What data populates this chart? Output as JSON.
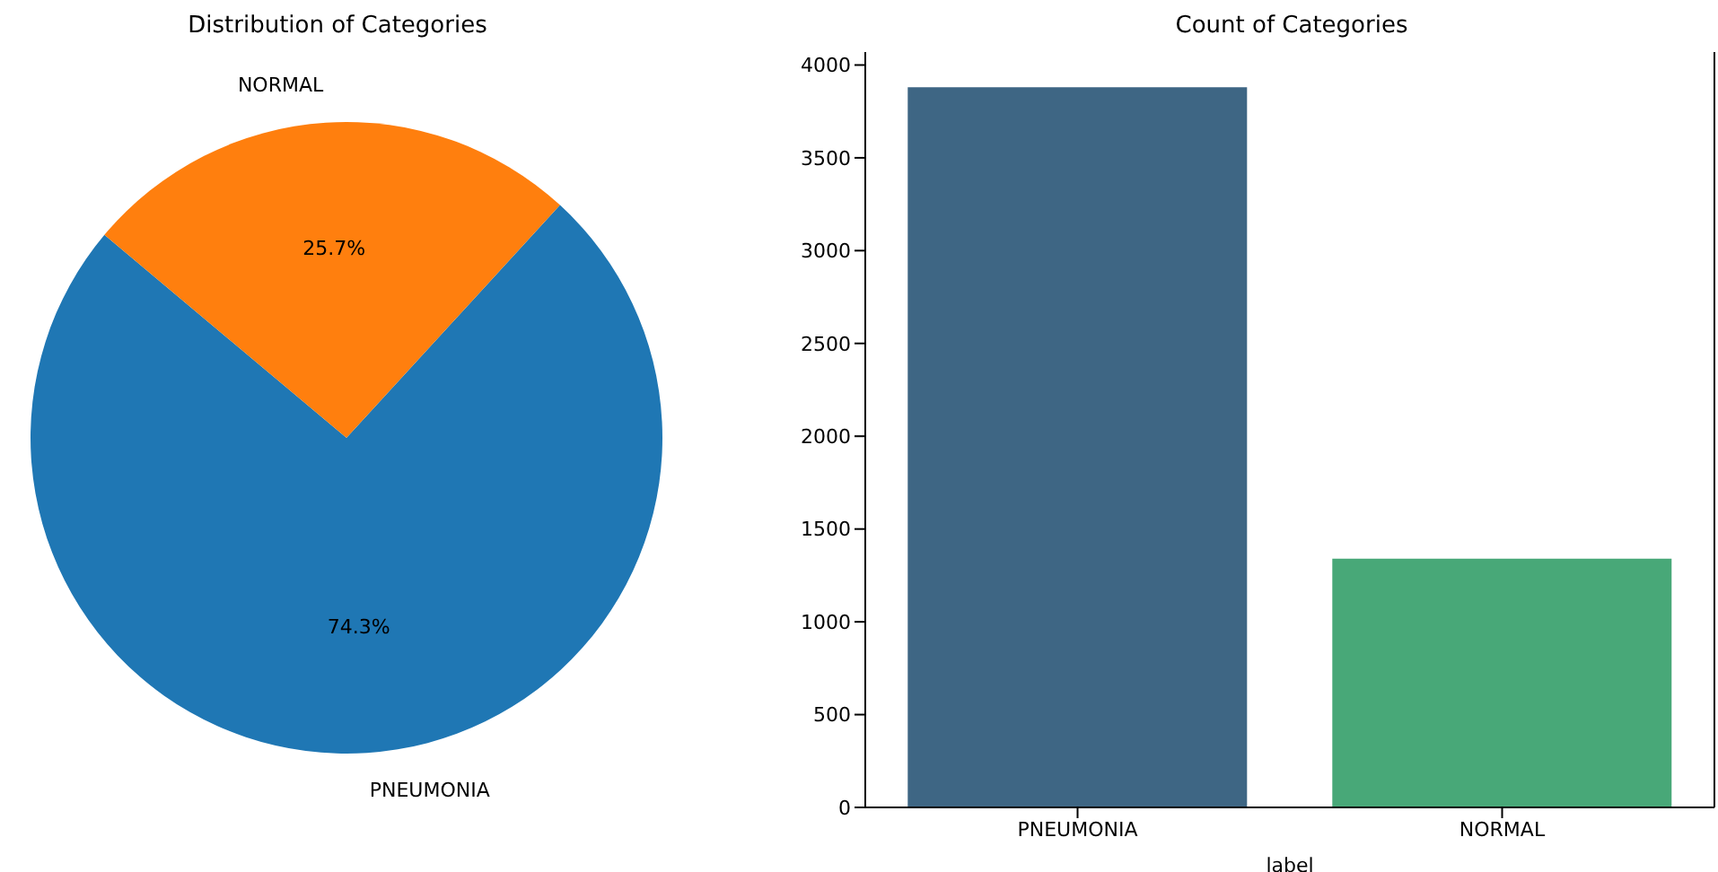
{
  "chart_data": [
    {
      "type": "pie",
      "title": "Distribution of Categories",
      "categories": [
        "PNEUMONIA",
        "NORMAL"
      ],
      "values": [
        74.3,
        25.7
      ],
      "colors": [
        "#1f77b4",
        "#ff7f0e"
      ],
      "value_labels": [
        "74.3%",
        "25.7%"
      ],
      "legend": false
    },
    {
      "type": "bar",
      "title": "Count of Categories",
      "xlabel": "label",
      "categories": [
        "PNEUMONIA",
        "NORMAL"
      ],
      "values": [
        3880,
        1340
      ],
      "colors": [
        "#3e6684",
        "#48a878"
      ],
      "ylim": [
        0,
        4070
      ],
      "yticks": [
        0,
        500,
        1000,
        1500,
        2000,
        2500,
        3000,
        3500,
        4000
      ],
      "grid": false,
      "legend": false
    }
  ]
}
